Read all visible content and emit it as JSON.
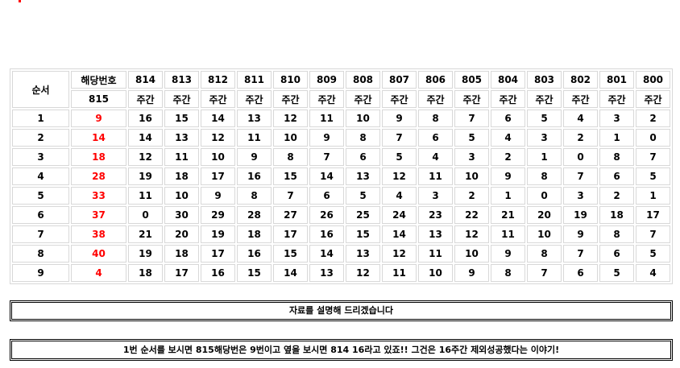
{
  "header": {
    "order_label": "순서",
    "target_label": "해당번호",
    "target_round": "815",
    "rounds": [
      "814",
      "813",
      "812",
      "811",
      "810",
      "809",
      "808",
      "807",
      "806",
      "805",
      "804",
      "803",
      "802",
      "801",
      "800"
    ],
    "week_label": "주간"
  },
  "rows": [
    {
      "order": "1",
      "target": "9",
      "values": [
        "16",
        "15",
        "14",
        "13",
        "12",
        "11",
        "10",
        "9",
        "8",
        "7",
        "6",
        "5",
        "4",
        "3",
        "2"
      ]
    },
    {
      "order": "2",
      "target": "14",
      "values": [
        "14",
        "13",
        "12",
        "11",
        "10",
        "9",
        "8",
        "7",
        "6",
        "5",
        "4",
        "3",
        "2",
        "1",
        "0"
      ]
    },
    {
      "order": "3",
      "target": "18",
      "values": [
        "12",
        "11",
        "10",
        "9",
        "8",
        "7",
        "6",
        "5",
        "4",
        "3",
        "2",
        "1",
        "0",
        "8",
        "7"
      ]
    },
    {
      "order": "4",
      "target": "28",
      "values": [
        "19",
        "18",
        "17",
        "16",
        "15",
        "14",
        "13",
        "12",
        "11",
        "10",
        "9",
        "8",
        "7",
        "6",
        "5"
      ]
    },
    {
      "order": "5",
      "target": "33",
      "values": [
        "11",
        "10",
        "9",
        "8",
        "7",
        "6",
        "5",
        "4",
        "3",
        "2",
        "1",
        "0",
        "3",
        "2",
        "1"
      ]
    },
    {
      "order": "6",
      "target": "37",
      "values": [
        "0",
        "30",
        "29",
        "28",
        "27",
        "26",
        "25",
        "24",
        "23",
        "22",
        "21",
        "20",
        "19",
        "18",
        "17"
      ]
    },
    {
      "order": "7",
      "target": "38",
      "values": [
        "21",
        "20",
        "19",
        "18",
        "17",
        "16",
        "15",
        "14",
        "13",
        "12",
        "11",
        "10",
        "9",
        "8",
        "7"
      ]
    },
    {
      "order": "8",
      "target": "40",
      "values": [
        "19",
        "18",
        "17",
        "16",
        "15",
        "14",
        "13",
        "12",
        "11",
        "10",
        "9",
        "8",
        "7",
        "6",
        "5"
      ]
    },
    {
      "order": "9",
      "target": "4",
      "values": [
        "18",
        "17",
        "16",
        "15",
        "14",
        "13",
        "12",
        "11",
        "10",
        "9",
        "8",
        "7",
        "6",
        "5",
        "4"
      ]
    }
  ],
  "notes": {
    "intro": "자료를 설명해 드리겠습니다",
    "explanation": "1번 순서를 보시면 815해당번은 9번이고 옆을 보시면 814 16라고 있죠!! 그건은 16주간 제외성공했다는 이야기!"
  },
  "colors": {
    "highlight": "#ff0000",
    "border": "#d8d8d8"
  }
}
